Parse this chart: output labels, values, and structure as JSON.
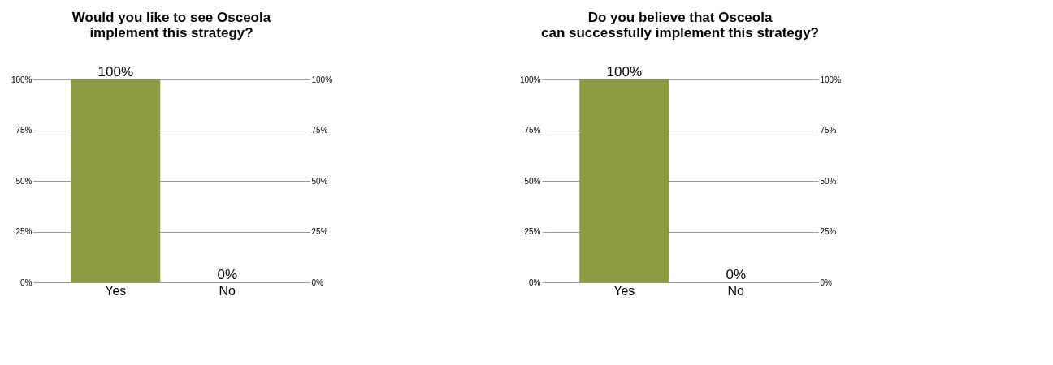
{
  "chart_data": [
    {
      "type": "bar",
      "title": "Would you like to see Osceola\nimplement this strategy?",
      "categories": [
        "Yes",
        "No"
      ],
      "values": [
        100,
        0
      ],
      "colors": [
        "#8c9a40",
        "#a0846a"
      ],
      "value_labels": [
        "100%",
        "0%"
      ],
      "ylim": [
        0,
        100
      ],
      "yticks": [
        {
          "value": 0,
          "label": "0%"
        },
        {
          "value": 25,
          "label": "25%"
        },
        {
          "value": 50,
          "label": "50%"
        },
        {
          "value": 75,
          "label": "75%"
        },
        {
          "value": 100,
          "label": "100%"
        }
      ],
      "y2lim": [
        0,
        100
      ],
      "y2ticks": [
        {
          "value": 0,
          "label": "0%"
        },
        {
          "value": 25,
          "label": "25%"
        },
        {
          "value": 50,
          "label": "50%"
        },
        {
          "value": 75,
          "label": "75%"
        },
        {
          "value": 100,
          "label": "100%"
        }
      ],
      "grid": "y"
    },
    {
      "type": "bar",
      "title": "Do you believe that Osceola\ncan successfully implement this strategy?",
      "categories": [
        "Yes",
        "No"
      ],
      "values": [
        100,
        0
      ],
      "colors": [
        "#8c9a40",
        "#a0846a"
      ],
      "value_labels": [
        "100%",
        "0%"
      ],
      "ylim": [
        0,
        100
      ],
      "yticks": [
        {
          "value": 0,
          "label": "0%"
        },
        {
          "value": 25,
          "label": "25%"
        },
        {
          "value": 50,
          "label": "50%"
        },
        {
          "value": 75,
          "label": "75%"
        },
        {
          "value": 100,
          "label": "100%"
        }
      ],
      "y2lim": [
        0,
        100
      ],
      "y2ticks": [
        {
          "value": 0,
          "label": "0%"
        },
        {
          "value": 25,
          "label": "25%"
        },
        {
          "value": 50,
          "label": "50%"
        },
        {
          "value": 75,
          "label": "75%"
        },
        {
          "value": 100,
          "label": "100%"
        }
      ],
      "grid": "y"
    }
  ]
}
